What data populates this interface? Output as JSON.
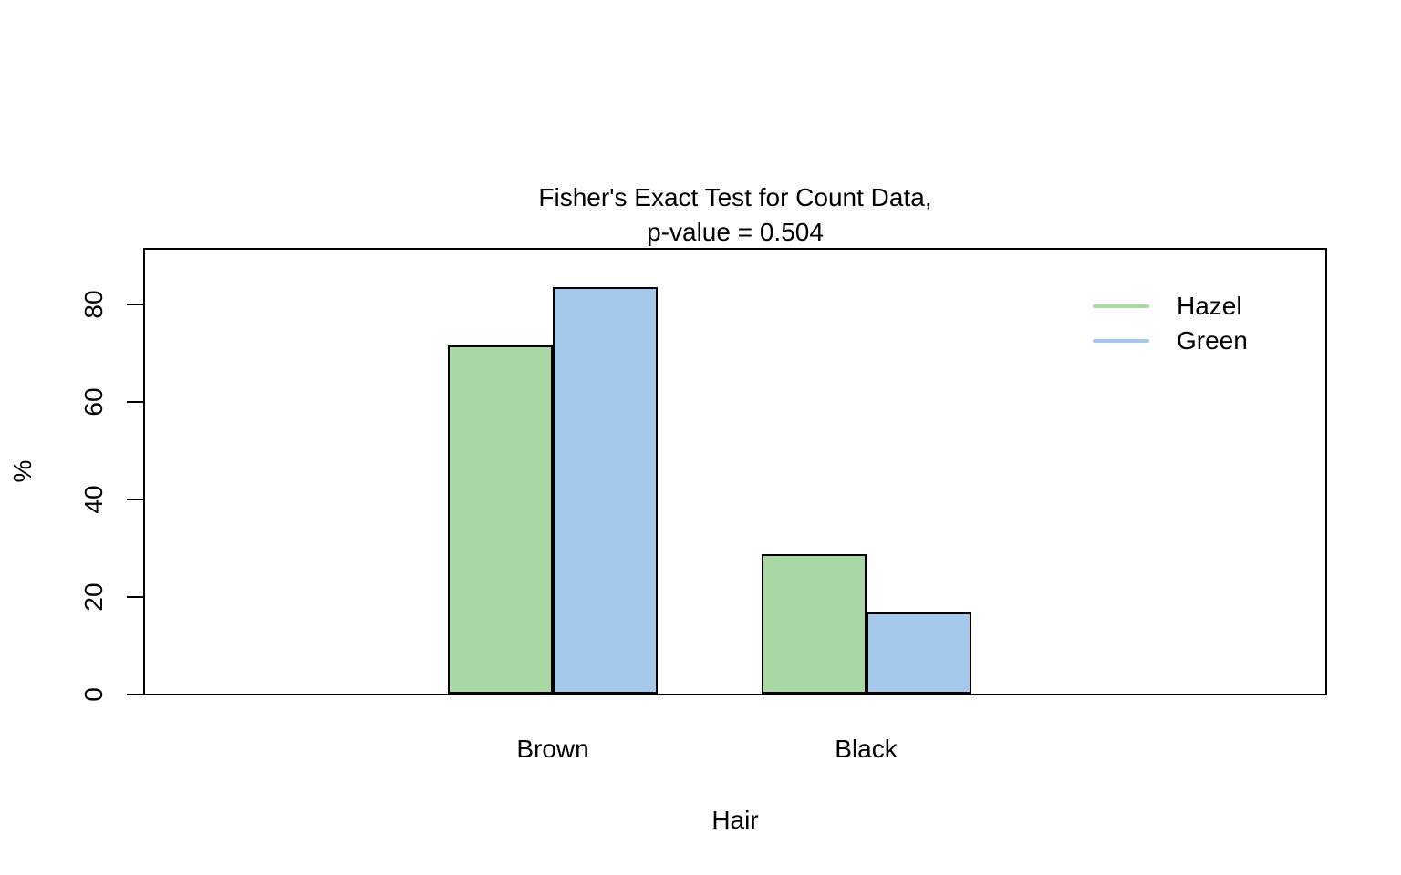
{
  "title": {
    "line1": "Fisher's Exact Test for Count Data,",
    "line2": "p-value = 0.504"
  },
  "chart_data": {
    "type": "bar",
    "categories": [
      "Brown",
      "Black"
    ],
    "series": [
      {
        "name": "Hazel",
        "color": "#A9D8A4",
        "values": [
          71.4,
          28.6
        ]
      },
      {
        "name": "Green",
        "color": "#A5C8EA",
        "values": [
          83.3,
          16.7
        ]
      }
    ],
    "xlabel": "Hair",
    "ylabel": "%",
    "yticks": [
      0,
      20,
      40,
      60,
      80
    ],
    "ylim": [
      0,
      91.8
    ],
    "grid": false,
    "legend_position": "top-right",
    "bar_border_color": "#000000",
    "axis_color": "#000000"
  }
}
